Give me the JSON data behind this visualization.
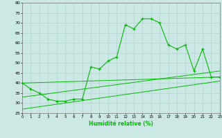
{
  "xlabel": "Humidité relative (%)",
  "ylim": [
    25,
    80
  ],
  "xlim": [
    0,
    23
  ],
  "yticks": [
    25,
    30,
    35,
    40,
    45,
    50,
    55,
    60,
    65,
    70,
    75,
    80
  ],
  "xticks": [
    0,
    1,
    2,
    3,
    4,
    5,
    6,
    7,
    8,
    9,
    10,
    11,
    12,
    13,
    14,
    15,
    16,
    17,
    18,
    19,
    20,
    21,
    22,
    23
  ],
  "bg_color": "#cce8e4",
  "grid_color": "#aacccc",
  "line_color": "#00bb00",
  "marker": "+",
  "series1": {
    "x": [
      0,
      1,
      2,
      3,
      4,
      5,
      6,
      7,
      8,
      9,
      10,
      11,
      12,
      13,
      14,
      15,
      16,
      17,
      18,
      19,
      20,
      21,
      22,
      23
    ],
    "y": [
      40,
      37,
      35,
      32,
      31,
      31,
      32,
      32,
      48,
      47,
      51,
      53,
      69,
      67,
      72,
      72,
      70,
      59,
      57,
      59,
      46,
      57,
      43,
      43
    ]
  },
  "series2": {
    "x": [
      0,
      23
    ],
    "y": [
      40,
      43
    ]
  },
  "series3": {
    "x": [
      0,
      23
    ],
    "y": [
      33,
      46
    ]
  },
  "series4": {
    "x": [
      0,
      23
    ],
    "y": [
      27,
      41
    ]
  }
}
